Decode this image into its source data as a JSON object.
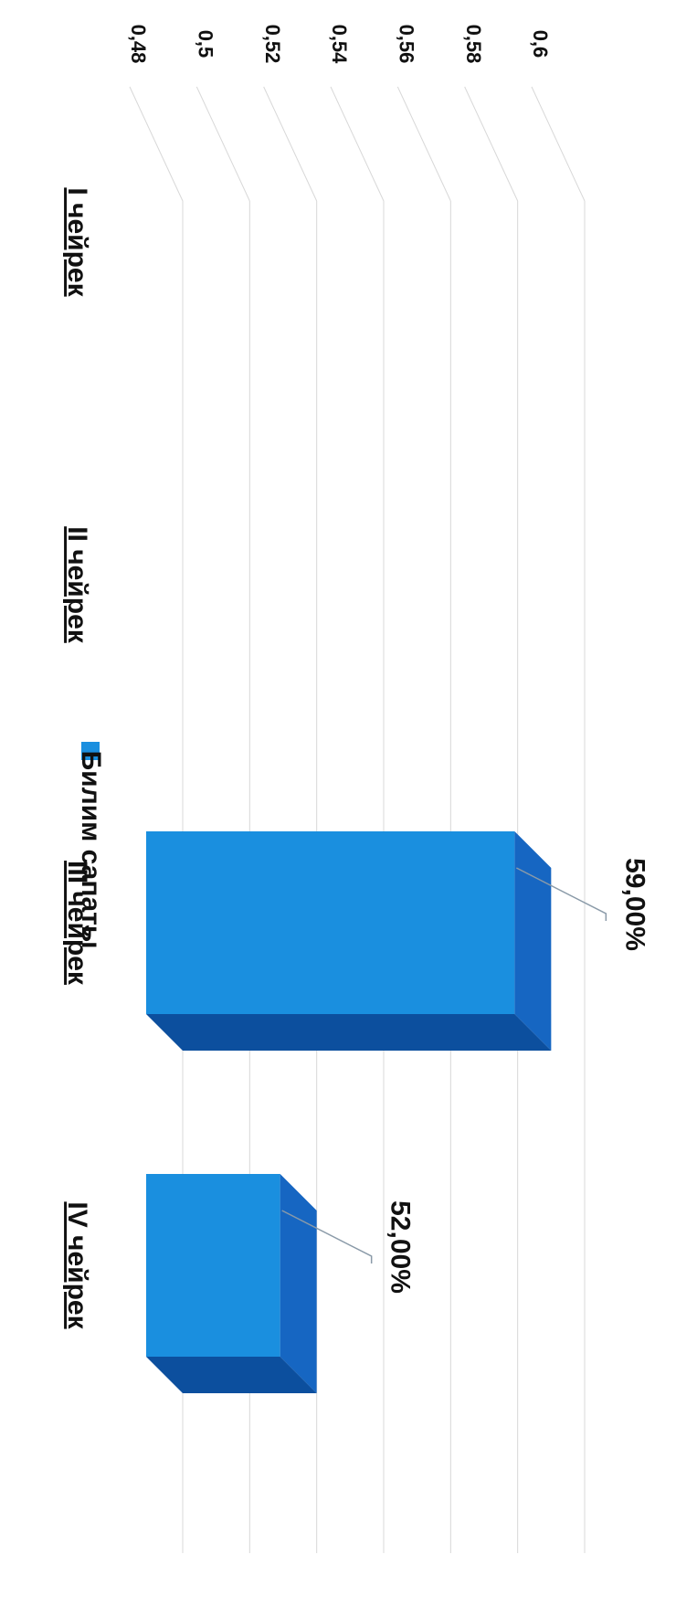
{
  "chart_data": {
    "type": "bar",
    "orientation": "horizontal",
    "rendering": "3d",
    "categories": [
      "I чейрек",
      "II чейрек",
      "III чейрек",
      "IV чейрек"
    ],
    "series": [
      {
        "name": "Билим сапаты",
        "values": [
          null,
          null,
          0.59,
          0.52
        ],
        "data_labels": [
          "",
          "",
          "59,00%",
          "52,00%"
        ]
      }
    ],
    "x_ticks": [
      "0,48",
      "0,5",
      "0,52",
      "0,54",
      "0,56",
      "0,58",
      "0,6"
    ],
    "xlim": [
      0.48,
      0.6
    ],
    "grid": true,
    "legend_position": "bottom"
  },
  "colors": {
    "bar_front": "#1a8fdf",
    "bar_top": "#1666c2",
    "bar_side": "#0c4f9e",
    "grid": "#d8d8d8",
    "legend_swatch": "#1a8fdf"
  }
}
